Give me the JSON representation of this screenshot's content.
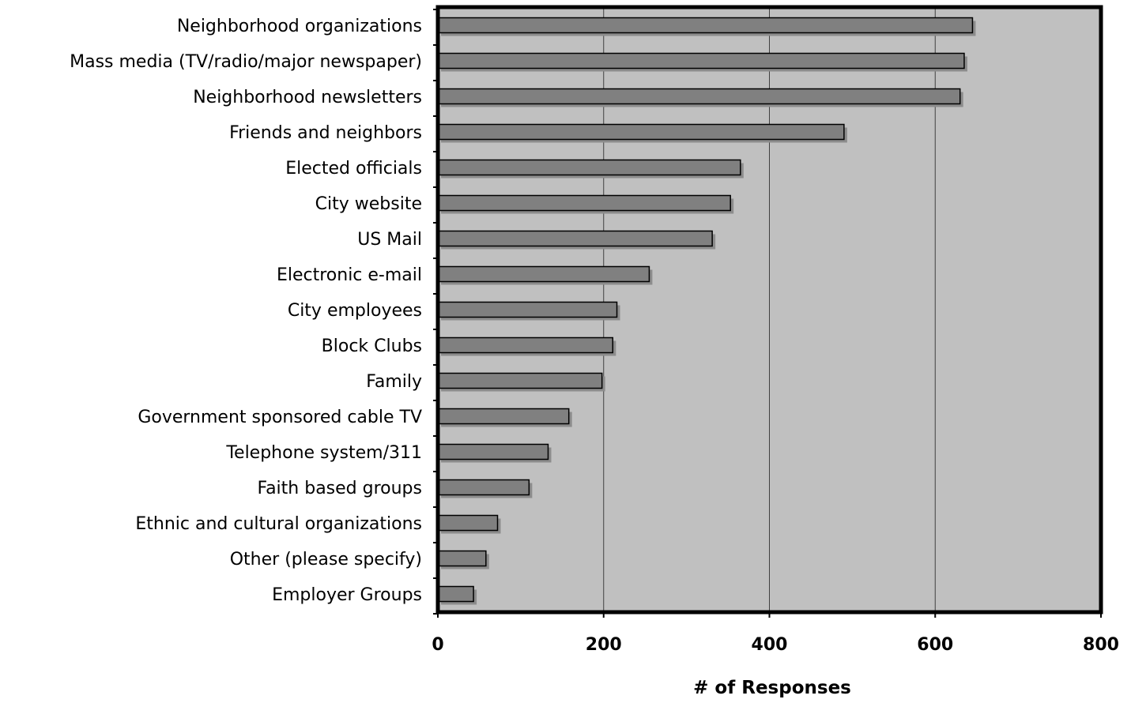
{
  "chart_data": {
    "type": "bar",
    "orientation": "horizontal",
    "categories": [
      "Neighborhood organizations",
      "Mass media (TV/radio/major newspaper)",
      "Neighborhood newsletters",
      "Friends and neighbors",
      "Elected officials",
      "City website",
      "US Mail",
      "Electronic e-mail",
      "City employees",
      "Block Clubs",
      "Family",
      "Government sponsored cable TV",
      "Telephone system/311",
      "Faith based groups",
      "Ethnic and cultural organizations",
      "Other (please specify)",
      "Employer Groups"
    ],
    "values": [
      645,
      635,
      630,
      490,
      365,
      353,
      331,
      255,
      216,
      211,
      198,
      158,
      133,
      110,
      72,
      58,
      43
    ],
    "title": "",
    "xlabel": "# of Responses",
    "ylabel": "",
    "xlim": [
      0,
      800
    ],
    "x_ticks": [
      "0",
      "200",
      "400",
      "600",
      "800"
    ],
    "x_tick_values": [
      0,
      200,
      400,
      600,
      800
    ],
    "grid": "vertical",
    "legend": "none",
    "colors": {
      "plot_background": "#c0c0c0",
      "bar_fill": "#808080",
      "bar_stroke": "#000000",
      "bar_shadow": "#8c8c8c",
      "gridline": "#404040",
      "frame": "#000000"
    }
  }
}
